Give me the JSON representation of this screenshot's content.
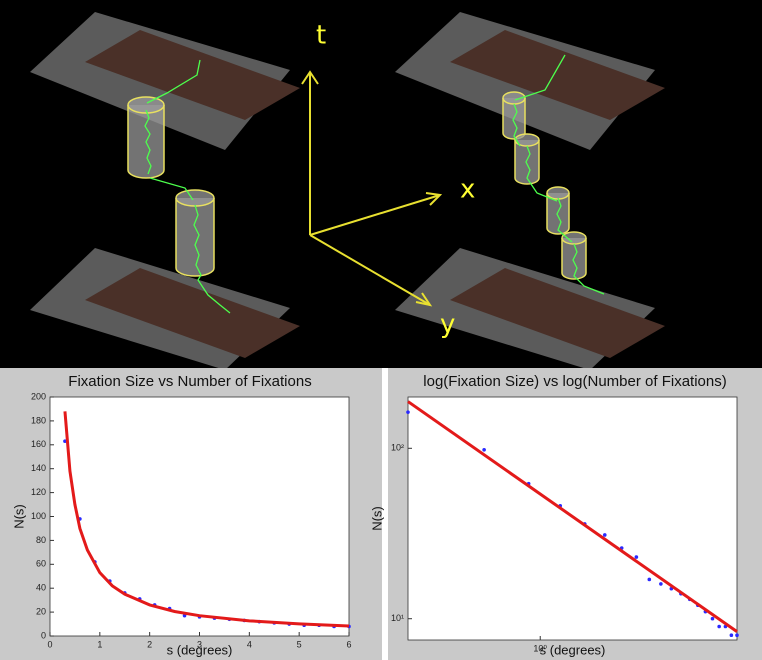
{
  "diagram": {
    "axis_labels": [
      "t",
      "x",
      "y"
    ]
  },
  "chart_data": [
    {
      "type": "scatter",
      "title": "Fixation Size vs Number of Fixations",
      "x_label": "s (degrees)",
      "y_label": "N(s)",
      "xlim": [
        0,
        6
      ],
      "ylim": [
        0,
        200
      ],
      "xticks": [
        0,
        1,
        2,
        3,
        4,
        5,
        6
      ],
      "yticks": [
        0,
        20,
        40,
        60,
        80,
        100,
        120,
        140,
        160,
        180,
        200
      ],
      "xlog": false,
      "ylog": false,
      "series": [
        {
          "mode": "markers",
          "color": "#2a2aff",
          "x": [
            0.3,
            0.6,
            0.9,
            1.2,
            1.5,
            1.8,
            2.1,
            2.4,
            2.7,
            3.0,
            3.3,
            3.6,
            3.9,
            4.2,
            4.5,
            4.8,
            5.1,
            5.4,
            5.7,
            6.0
          ],
          "values": [
            163,
            98,
            62,
            46,
            36,
            31,
            26,
            23,
            17,
            16,
            15,
            14,
            13,
            12,
            11,
            10,
            9,
            9,
            8,
            8
          ]
        },
        {
          "mode": "line",
          "color": "#e31a1a",
          "x": [
            0.3,
            0.4,
            0.5,
            0.6,
            0.75,
            1,
            1.25,
            1.5,
            2,
            2.5,
            3,
            4,
            5,
            6
          ],
          "values": [
            188,
            138,
            110,
            90,
            72,
            53,
            42,
            35,
            26,
            20.5,
            17,
            12.7,
            10.1,
            8.4
          ]
        }
      ]
    },
    {
      "type": "scatter",
      "title": "log(Fixation Size) vs log(Number of Fixations)",
      "x_label": "s (degrees)",
      "y_label": "N(s)",
      "xlim": [
        0.3,
        6
      ],
      "ylim": [
        7.5,
        200
      ],
      "xticks": [
        {
          "value": 1,
          "label": "10⁰"
        }
      ],
      "yticks": [
        {
          "value": 10,
          "label": "10¹"
        },
        {
          "value": 100,
          "label": "10²"
        }
      ],
      "xlog": true,
      "ylog": true,
      "series": [
        {
          "mode": "markers",
          "color": "#2a2aff",
          "x": [
            0.3,
            0.6,
            0.9,
            1.2,
            1.5,
            1.8,
            2.1,
            2.4,
            2.7,
            3.0,
            3.3,
            3.6,
            3.9,
            4.2,
            4.5,
            4.8,
            5.1,
            5.4,
            5.7,
            6.0
          ],
          "values": [
            163,
            98,
            62,
            46,
            36,
            31,
            26,
            23,
            17,
            16,
            15,
            14,
            13,
            12,
            11,
            10,
            9,
            9,
            8,
            8
          ]
        },
        {
          "mode": "line",
          "color": "#e31a1a",
          "x": [
            0.3,
            6
          ],
          "values": [
            188,
            8.4
          ]
        }
      ]
    }
  ]
}
